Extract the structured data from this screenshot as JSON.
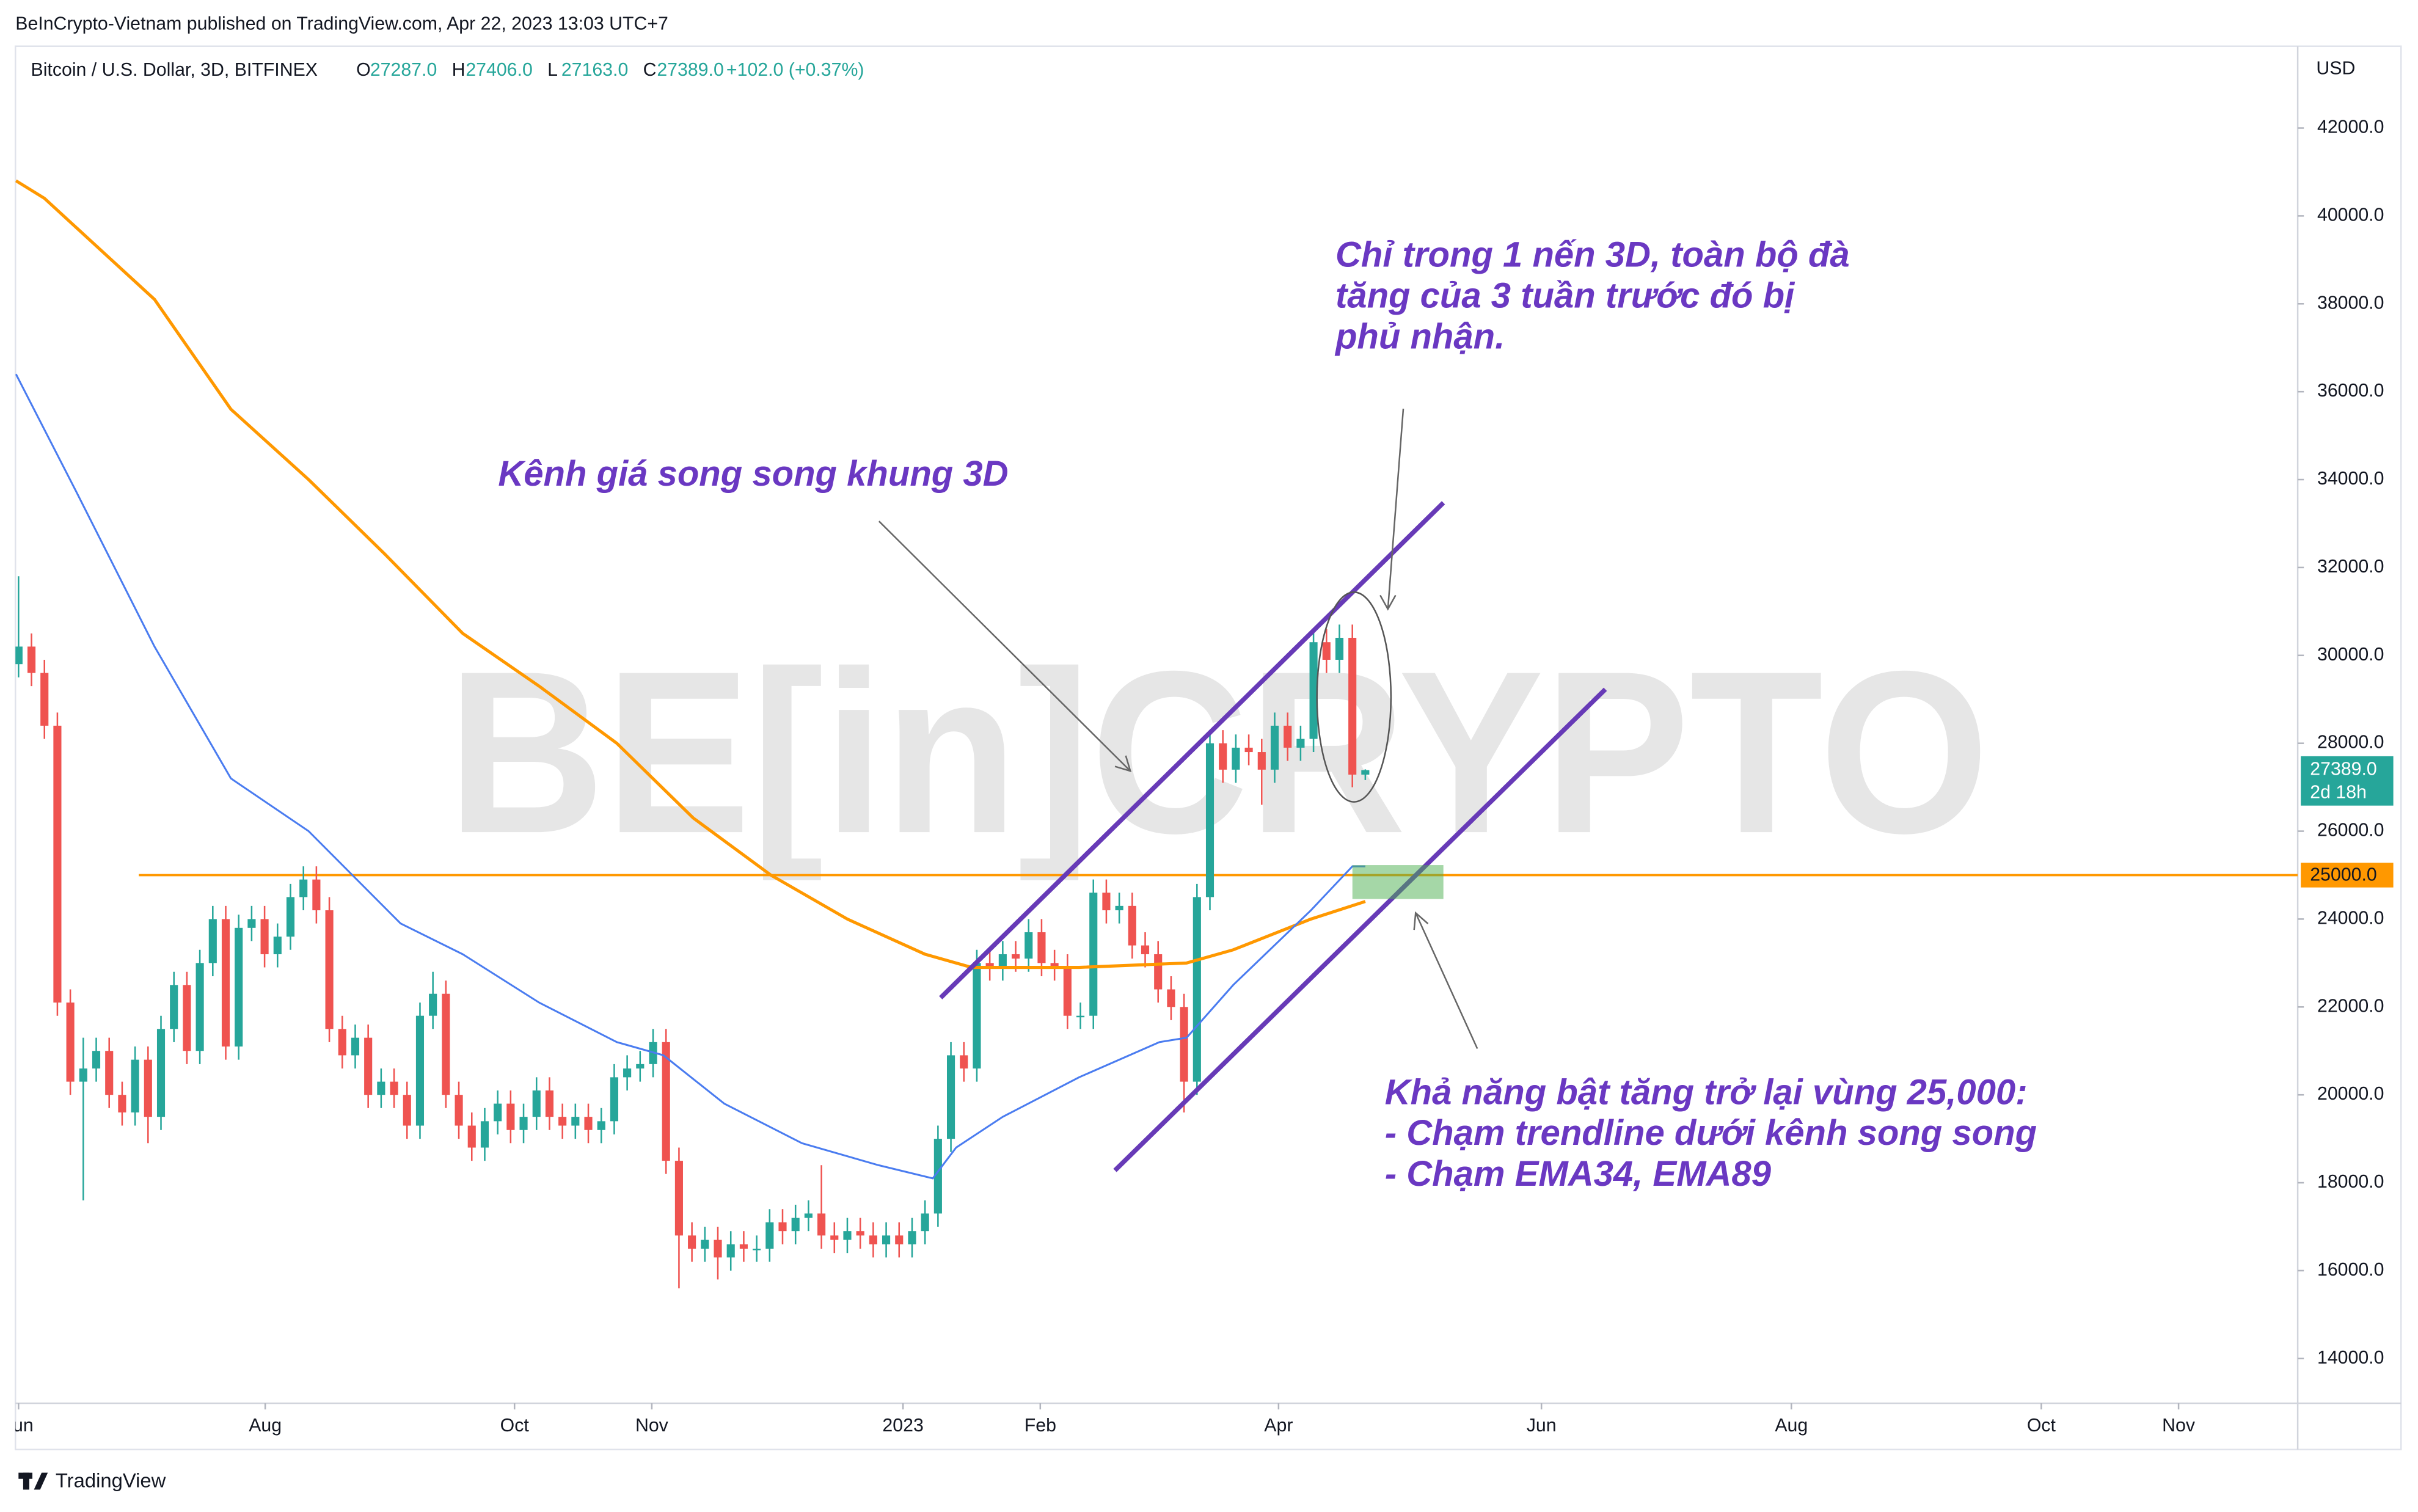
{
  "header": {
    "published": "BeInCrypto-Vietnam published on TradingView.com, Apr 22, 2023 13:03 UTC+7"
  },
  "chart_data": {
    "type": "candlestick",
    "symbol": "Bitcoin / U.S. Dollar, 3D, BITFINEX",
    "ohlc": [
      {
        "label": "O",
        "value": "27287.0"
      },
      {
        "label": "H",
        "value": "27406.0"
      },
      {
        "label": "L",
        "value": "27163.0"
      },
      {
        "label": "C",
        "value": "27389.0"
      }
    ],
    "change": "+102.0 (+0.37%)",
    "currency": "USD",
    "up_color": "#26a69a",
    "down_color": "#ef5350",
    "open": [
      29800,
      30200,
      29600,
      28400,
      22100,
      20300,
      20600,
      21000,
      20000,
      19600,
      20800,
      19500,
      21500,
      22500,
      21000,
      23000,
      24000,
      21100,
      23800,
      24000,
      23200,
      23600,
      24500,
      24900,
      24200,
      21500,
      20900,
      21300,
      20000,
      20300,
      20000,
      19300,
      21800,
      22300,
      20000,
      19300,
      18800,
      19400,
      19800,
      19200,
      19500,
      20100,
      19500,
      19300,
      19500,
      19200,
      19400,
      20400,
      20600,
      20700,
      21200,
      18500,
      16800,
      16500,
      16700,
      16300,
      16600,
      16500,
      16500,
      17100,
      16900,
      17200,
      17300,
      16800,
      16700,
      16900,
      16800,
      16600,
      16800,
      16600,
      16900,
      17300,
      19000,
      20900,
      20600,
      23000,
      22900,
      23200,
      23100,
      23700,
      23000,
      22900,
      21800,
      21800,
      24600,
      24200,
      24300,
      23400,
      23200,
      22400,
      22000,
      20300,
      24500,
      28000,
      27400,
      27900,
      27800,
      27400,
      28400,
      27900,
      28100,
      30300,
      29900,
      30400,
      27287
    ],
    "high": [
      31800,
      30500,
      29900,
      28700,
      22400,
      21300,
      21300,
      21300,
      20300,
      21100,
      21100,
      21800,
      22800,
      22800,
      23300,
      24300,
      24300,
      24100,
      24300,
      24300,
      23900,
      24800,
      25200,
      25200,
      24500,
      21800,
      21600,
      21600,
      20600,
      20600,
      20300,
      22100,
      22800,
      22600,
      20300,
      19600,
      19700,
      20100,
      20100,
      19800,
      20400,
      20400,
      19800,
      19800,
      19800,
      19700,
      20700,
      20900,
      21000,
      21500,
      21500,
      18800,
      17100,
      17000,
      17000,
      16900,
      16900,
      16800,
      17400,
      17400,
      17500,
      17600,
      18400,
      17100,
      17200,
      17200,
      17100,
      17100,
      17100,
      17200,
      17600,
      19300,
      21200,
      21200,
      23300,
      23300,
      23500,
      23500,
      24000,
      24000,
      23300,
      23200,
      22100,
      24900,
      24900,
      24600,
      24600,
      23700,
      23500,
      22700,
      22300,
      24800,
      28300,
      28300,
      28200,
      28200,
      28100,
      28700,
      28700,
      28400,
      30600,
      30600,
      30700,
      30700,
      27406
    ],
    "low": [
      29500,
      29300,
      28100,
      21800,
      20000,
      17600,
      20300,
      19700,
      19300,
      19300,
      18900,
      19200,
      21200,
      20700,
      20700,
      22700,
      20800,
      20800,
      23500,
      22900,
      22900,
      23300,
      24200,
      23900,
      21200,
      20600,
      20600,
      19700,
      19700,
      19700,
      19000,
      19000,
      21500,
      19700,
      19000,
      18500,
      18500,
      19100,
      18900,
      18900,
      19200,
      19200,
      19000,
      19000,
      18900,
      18900,
      19100,
      20100,
      20300,
      20400,
      18200,
      15600,
      16200,
      16200,
      15800,
      16000,
      16200,
      16200,
      16200,
      16600,
      16600,
      16900,
      16500,
      16400,
      16400,
      16500,
      16300,
      16300,
      16300,
      16300,
      16600,
      17000,
      18700,
      20300,
      20300,
      22600,
      22600,
      22800,
      22800,
      22700,
      22600,
      21500,
      21500,
      21500,
      23900,
      23900,
      23100,
      22900,
      22100,
      21700,
      19600,
      20000,
      24200,
      27100,
      27100,
      27500,
      26600,
      27100,
      27600,
      27600,
      27800,
      29600,
      29600,
      27000,
      27163
    ],
    "close": [
      30200,
      29600,
      28400,
      22100,
      20300,
      20600,
      21000,
      20000,
      19600,
      20800,
      19500,
      21500,
      22500,
      21000,
      23000,
      24000,
      21100,
      23800,
      24000,
      23200,
      23600,
      24500,
      24900,
      24200,
      21500,
      20900,
      21300,
      20000,
      20300,
      20000,
      19300,
      21800,
      22300,
      20000,
      19300,
      18800,
      19400,
      19800,
      19200,
      19500,
      20100,
      19500,
      19300,
      19500,
      19200,
      19400,
      20400,
      20600,
      20700,
      21200,
      18500,
      16800,
      16500,
      16700,
      16300,
      16600,
      16500,
      16500,
      17100,
      16900,
      17200,
      17300,
      16800,
      16700,
      16900,
      16800,
      16600,
      16800,
      16600,
      16900,
      17300,
      19000,
      20900,
      20600,
      23000,
      22900,
      23200,
      23100,
      23700,
      23000,
      22900,
      21800,
      21800,
      24600,
      24200,
      24300,
      23400,
      23200,
      22400,
      22000,
      20300,
      24500,
      28000,
      27400,
      27900,
      27800,
      27400,
      28400,
      27900,
      28100,
      30300,
      29900,
      30400,
      27287,
      27389
    ],
    "lines": [
      {
        "color": "#ff9800",
        "x": [
          -0.2,
          2,
          10.5,
          16.4,
          22.4,
          28.3,
          34.3,
          40.2,
          46.2,
          52.1,
          58.1,
          64,
          70,
          73.6,
          81.9,
          90.2,
          93.8,
          99.8,
          104
        ],
        "values": [
          40800,
          40400,
          38100,
          35600,
          34000,
          32300,
          30500,
          29300,
          28000,
          26300,
          25000,
          24000,
          23200,
          22900,
          22900,
          23000,
          23300,
          24000,
          24400
        ]
      },
      {
        "color": "#4a7cf0",
        "x": [
          -0.2,
          4.5,
          10.5,
          16.4,
          22.4,
          29.5,
          34.3,
          40.2,
          46.2,
          49.8,
          54.5,
          60.5,
          66.4,
          70.6,
          72.4,
          76,
          81.9,
          88.1,
          90.2,
          93.8,
          99.8,
          103,
          104
        ],
        "values": [
          36400,
          33700,
          30200,
          27200,
          26000,
          23900,
          23200,
          22100,
          21200,
          20900,
          19800,
          18900,
          18400,
          18100,
          18800,
          19500,
          20400,
          21200,
          21300,
          22500,
          24200,
          25200,
          25200
        ]
      }
    ],
    "hline": {
      "value": 25000,
      "label": "25000.0",
      "color": "#ff9800"
    },
    "last_price": {
      "label": "27389.0",
      "countdown": "2d 18h"
    },
    "xlim": [
      -0.24,
      176
    ],
    "xticks": [
      {
        "value": 0,
        "label": "Jun"
      },
      {
        "value": 19.05,
        "label": "Aug"
      },
      {
        "value": 38.3,
        "label": "Oct"
      },
      {
        "value": 48.9,
        "label": "Nov"
      },
      {
        "value": 68.3,
        "label": "2023"
      },
      {
        "value": 78.9,
        "label": "Feb"
      },
      {
        "value": 97.3,
        "label": "Apr"
      },
      {
        "value": 117.6,
        "label": "Jun"
      },
      {
        "value": 136.9,
        "label": "Aug"
      },
      {
        "value": 156.2,
        "label": "Oct"
      },
      {
        "value": 166.8,
        "label": "Nov"
      }
    ],
    "ylim": [
      12982,
      43860
    ],
    "yticks": [
      {
        "value": 14000,
        "label": "14000.0"
      },
      {
        "value": 16000,
        "label": "16000.0"
      },
      {
        "value": 18000,
        "label": "18000.0"
      },
      {
        "value": 20000,
        "label": "20000.0"
      },
      {
        "value": 22000,
        "label": "22000.0"
      },
      {
        "value": 24000,
        "label": "24000.0"
      },
      {
        "value": 26000,
        "label": "26000.0"
      },
      {
        "value": 28000,
        "label": "28000.0"
      },
      {
        "value": 30000,
        "label": "30000.0"
      },
      {
        "value": 32000,
        "label": "32000.0"
      },
      {
        "value": 34000,
        "label": "34000.0"
      },
      {
        "value": 36000,
        "label": "36000.0"
      },
      {
        "value": 38000,
        "label": "38000.0"
      },
      {
        "value": 40000,
        "label": "40000.0"
      },
      {
        "value": 42000,
        "label": "42000.0"
      }
    ],
    "grid": false,
    "annotations": [
      {
        "lines": [
          "Chỉ trong 1 nến 3D, toàn bộ đà",
          "tăng của 3 tuần trước đó bị",
          "phủ nhận."
        ]
      },
      {
        "lines": [
          "Kênh giá song song khung 3D"
        ]
      },
      {
        "lines": [
          "Khả năng bật tăng trở lại vùng 25,000:",
          "- Chạm trendline dưới kênh song song",
          "- Chạm EMA34, EMA89"
        ]
      }
    ]
  },
  "watermark": "BE[in]CRYPTO",
  "footer": "TradingView"
}
